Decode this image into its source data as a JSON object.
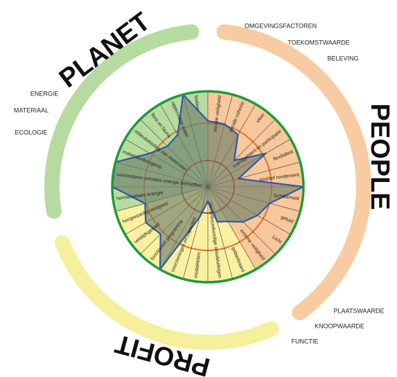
{
  "chart_data": {
    "type": "radar",
    "groups": [
      {
        "title": "PEOPLE",
        "color": "#f8c89a",
        "band": "#f7c292",
        "items": [
          "OMGEVINGSFACTOREN",
          "TOEKOMSTWAARDE",
          "BELEVING"
        ],
        "axes": [
          "sociale veiligheid",
          "sociale cohesie",
          "sfeer",
          "management en participatie",
          "flexibiliteit",
          "positief rendement",
          "luchtklimaat",
          "geluid",
          "Licht",
          "externe veiligheid"
        ],
        "values": [
          69,
          68,
          63,
          39,
          70,
          33,
          100,
          67,
          60,
          52
        ]
      },
      {
        "title": "PROFIT",
        "color": "#fbf0a0",
        "band": "#f5ec8a",
        "items": [
          "PLAATSWAARDE",
          "KNOOPWAARDE",
          "FUNCTIE"
        ],
        "axes": [
          "gebiedsaard",
          "stedenbouwkundige ontwikkelingen",
          "modaliteiten",
          "voorzieningen en capaciteit",
          "functioneel programma",
          "verblijfsgebied",
          "hoogwaardig vastgoed"
        ],
        "values": [
          42,
          38,
          15,
          33,
          100,
          70,
          75
        ]
      },
      {
        "title": "PLANET",
        "color": "#b7dca0",
        "band": "#a9d590",
        "items": [
          "ENERGIE",
          "MATERIAAL",
          "ECOLOGIE"
        ],
        "axes": [
          "hernieuwbare energie",
          "verminderen primaire energie behoeften",
          "materialenkringloop",
          "milieubelasting van materialen",
          "flora en fauna",
          "oppervlakte water",
          "bodem"
        ],
        "values": [
          68,
          100,
          100,
          70,
          60,
          63,
          100
        ]
      }
    ],
    "line_color": "#2f56a8",
    "fill_color": "#6e7e6a"
  }
}
